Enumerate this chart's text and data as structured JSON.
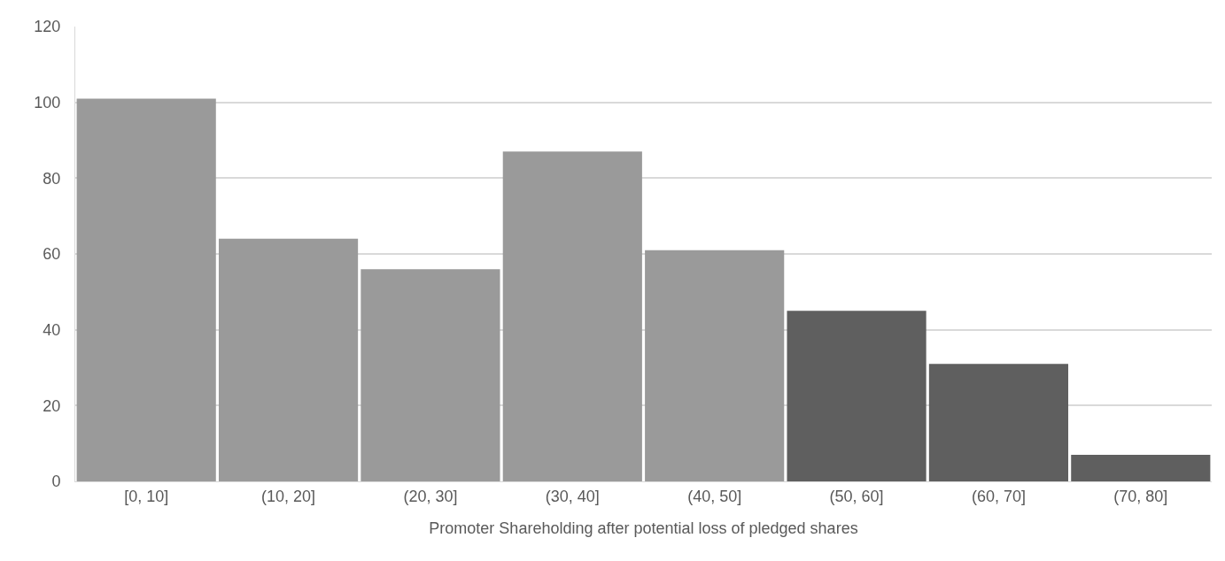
{
  "chart_data": {
    "type": "bar",
    "xlabel": "Promoter Shareholding after potential loss of pledged shares",
    "categories": [
      "[0, 10]",
      "(10, 20]",
      "(20, 30]",
      "(30, 40]",
      "(40, 50]",
      "(50, 60]",
      "(60, 70]",
      "(70, 80]"
    ],
    "values": [
      101,
      64,
      56,
      87,
      61,
      45,
      31,
      7
    ],
    "colors": [
      "#9a9a9a",
      "#9a9a9a",
      "#9a9a9a",
      "#9a9a9a",
      "#9a9a9a",
      "#5f5f5f",
      "#5f5f5f",
      "#5f5f5f"
    ],
    "ylim": [
      0,
      120
    ],
    "yticks": [
      0,
      20,
      40,
      60,
      80,
      100,
      120
    ],
    "grid": "y"
  }
}
